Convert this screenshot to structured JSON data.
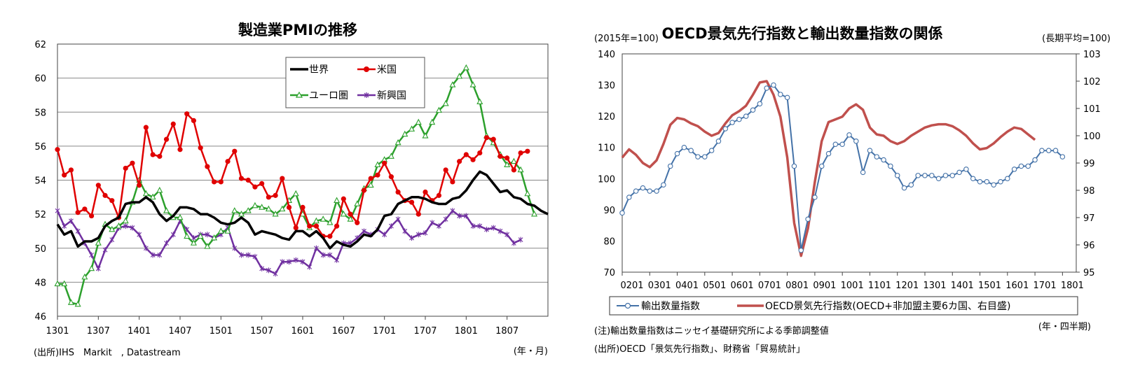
{
  "chart_data": [
    {
      "type": "line",
      "title": "製造業PMIの推移",
      "unit_note": "(年・月)",
      "source": "(出所)IHS　Markit　, Datastream",
      "x_tick_labels": [
        "1301",
        "1307",
        "1401",
        "1407",
        "1501",
        "1507",
        "1601",
        "1607",
        "1701",
        "1707",
        "1801",
        "1807"
      ],
      "ylim": [
        46,
        62
      ],
      "y_ticks": [
        46,
        48,
        50,
        52,
        54,
        56,
        58,
        60,
        62
      ],
      "legend": {
        "world": "世界",
        "us": "米国",
        "euro": "ユーロ圏",
        "emerging": "新興国"
      },
      "series": [
        {
          "key": "world",
          "name": "世界",
          "color": "#000000",
          "values": [
            51.4,
            50.8,
            51.0,
            50.1,
            50.4,
            50.4,
            50.6,
            51.3,
            51.6,
            51.8,
            52.6,
            52.7,
            52.7,
            53.0,
            52.7,
            52.0,
            51.6,
            51.9,
            52.4,
            52.4,
            52.3,
            52.0,
            52.0,
            51.8,
            51.5,
            51.4,
            51.5,
            51.8,
            51.5,
            50.8,
            51.0,
            50.9,
            50.8,
            50.6,
            50.5,
            51.0,
            51.0,
            50.7,
            51.0,
            50.6,
            50.0,
            50.4,
            50.2,
            50.1,
            50.4,
            50.8,
            50.7,
            51.1,
            51.9,
            52.0,
            52.6,
            52.8,
            53.0,
            53.0,
            52.9,
            52.7,
            52.6,
            52.6,
            52.9,
            53.0,
            53.4,
            54.0,
            54.5,
            54.3,
            53.8,
            53.3,
            53.4,
            53.0,
            52.9,
            52.6,
            52.5,
            52.2,
            52.0
          ]
        },
        {
          "key": "us",
          "name": "米国",
          "color": "#e00000",
          "values": [
            55.8,
            54.3,
            54.6,
            52.1,
            52.3,
            51.9,
            53.7,
            53.1,
            52.8,
            51.8,
            54.7,
            55.0,
            53.7,
            57.1,
            55.5,
            55.4,
            56.4,
            57.3,
            55.8,
            57.9,
            57.5,
            55.9,
            54.8,
            53.9,
            53.9,
            55.1,
            55.7,
            54.1,
            54.0,
            53.6,
            53.8,
            53.0,
            53.1,
            54.1,
            52.4,
            51.2,
            52.4,
            51.3,
            51.3,
            50.7,
            50.7,
            51.3,
            52.9,
            52.0,
            51.5,
            53.4,
            54.1,
            54.3,
            55.0,
            54.2,
            53.3,
            52.8,
            52.7,
            52.0,
            53.3,
            52.8,
            53.1,
            54.6,
            53.9,
            55.1,
            55.5,
            55.2,
            55.6,
            56.5,
            56.4,
            55.4,
            55.3,
            54.6,
            55.6,
            55.7
          ]
        },
        {
          "key": "euro",
          "name": "ユーロ圏",
          "color": "#2ca02c",
          "values": [
            47.9,
            47.9,
            46.8,
            46.7,
            48.3,
            48.8,
            50.3,
            51.4,
            51.1,
            51.3,
            51.6,
            52.7,
            54.0,
            53.2,
            53.0,
            53.4,
            52.2,
            51.8,
            51.8,
            50.7,
            50.3,
            50.7,
            50.1,
            50.6,
            51.0,
            51.0,
            52.2,
            52.0,
            52.2,
            52.5,
            52.4,
            52.3,
            52.0,
            52.3,
            52.8,
            53.2,
            52.0,
            51.2,
            51.6,
            51.7,
            51.5,
            52.8,
            52.0,
            51.7,
            52.6,
            53.5,
            53.7,
            54.9,
            55.2,
            55.4,
            56.2,
            56.7,
            57.0,
            57.4,
            56.6,
            57.4,
            58.1,
            58.5,
            59.6,
            60.1,
            60.6,
            59.6,
            58.6,
            56.6,
            56.2,
            55.5,
            54.9,
            55.1,
            54.6,
            53.2,
            52.0
          ]
        },
        {
          "key": "emerging",
          "name": "新興国",
          "color": "#7030a0",
          "values": [
            52.2,
            51.3,
            51.6,
            51.0,
            50.3,
            49.6,
            48.8,
            49.9,
            50.5,
            51.2,
            51.3,
            51.2,
            50.8,
            50.0,
            49.6,
            49.6,
            50.3,
            50.8,
            51.6,
            51.1,
            50.6,
            50.8,
            50.8,
            50.6,
            50.8,
            51.2,
            50.0,
            49.6,
            49.6,
            49.5,
            48.8,
            48.7,
            48.5,
            49.2,
            49.2,
            49.3,
            49.2,
            48.9,
            50.0,
            49.6,
            49.6,
            49.3,
            50.3,
            50.3,
            50.6,
            51.0,
            50.8,
            51.1,
            50.8,
            51.3,
            51.7,
            51.0,
            50.6,
            50.8,
            50.9,
            51.5,
            51.3,
            51.7,
            52.2,
            51.9,
            51.9,
            51.3,
            51.3,
            51.1,
            51.2,
            51.0,
            50.8,
            50.3,
            50.5
          ]
        }
      ]
    },
    {
      "type": "line",
      "title": "OECD景気先行指数と輸出数量指数の関係",
      "left_unit": "(2015年=100)",
      "right_unit": "(長期平均=100)",
      "x_unit": "(年・四半期)",
      "notes": [
        "(注)輸出数量指数はニッセイ基礎研究所による季節調整値",
        "(出所)OECD「景気先行指数」、財務省「貿易統計」"
      ],
      "x_tick_labels": [
        "0201",
        "0301",
        "0401",
        "0501",
        "0601",
        "0701",
        "0801",
        "0901",
        "1001",
        "1101",
        "1201",
        "1301",
        "1401",
        "1501",
        "1601",
        "1701",
        "1801"
      ],
      "ylim_left": [
        70,
        140
      ],
      "y_ticks_left": [
        70,
        80,
        90,
        100,
        110,
        120,
        130,
        140
      ],
      "ylim_right": [
        95,
        103
      ],
      "y_ticks_right": [
        95,
        96,
        97,
        98,
        99,
        100,
        101,
        102,
        103
      ],
      "series": [
        {
          "key": "export",
          "name": "輸出数量指数",
          "axis": "left",
          "color": "#4472a8",
          "values": [
            89,
            94,
            96,
            97,
            96,
            96,
            98,
            104,
            108,
            110,
            109,
            107,
            107,
            109,
            112,
            116,
            118,
            119,
            120,
            122,
            124,
            129,
            130,
            127,
            126,
            104,
            77,
            87,
            94,
            104,
            108,
            111,
            111,
            114,
            112,
            102,
            109,
            107,
            106,
            104,
            101,
            97,
            98,
            101,
            101,
            101,
            100,
            101,
            101,
            102,
            103,
            100,
            99,
            99,
            98,
            99,
            100,
            103,
            104,
            104,
            106,
            109,
            109,
            109,
            107
          ]
        },
        {
          "key": "oecd",
          "name": "OECD景気先行指数(OECD+非加盟主要6カ国、右目盛)",
          "axis": "right",
          "color": "#c0504d",
          "values": [
            99.2,
            99.5,
            99.3,
            99.0,
            98.85,
            99.1,
            99.7,
            100.4,
            100.65,
            100.6,
            100.45,
            100.35,
            100.15,
            100.0,
            100.1,
            100.45,
            100.75,
            100.9,
            101.1,
            101.5,
            101.95,
            102.0,
            101.5,
            100.7,
            99.2,
            96.8,
            95.6,
            96.6,
            98.3,
            99.8,
            100.5,
            100.6,
            100.7,
            101.0,
            101.15,
            100.95,
            100.3,
            100.05,
            100.0,
            99.8,
            99.7,
            99.8,
            100.0,
            100.15,
            100.3,
            100.38,
            100.42,
            100.42,
            100.35,
            100.2,
            100.0,
            99.72,
            99.5,
            99.55,
            99.72,
            99.95,
            100.15,
            100.3,
            100.25,
            100.05,
            99.85
          ]
        }
      ]
    }
  ]
}
